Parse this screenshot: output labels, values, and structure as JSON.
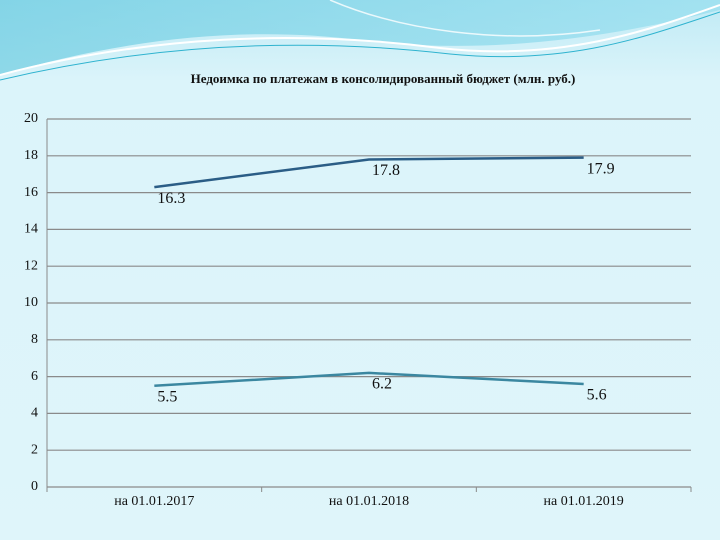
{
  "chart_data": {
    "type": "line",
    "title": "Недоимка по платежам в консолидированный бюджет (млн. руб.)",
    "categories": [
      "на 01.01.2017",
      "на 01.01.2018",
      "на 01.01.2019"
    ],
    "series": [
      {
        "color": "#2b5d86",
        "values": [
          16.3,
          17.8,
          17.9
        ]
      },
      {
        "color": "#3b87a0",
        "values": [
          5.5,
          6.2,
          5.6
        ]
      }
    ],
    "ylim": [
      0,
      20
    ],
    "yticks": [
      0,
      2,
      4,
      6,
      8,
      10,
      12,
      14,
      16,
      18,
      20
    ],
    "grid": true
  }
}
